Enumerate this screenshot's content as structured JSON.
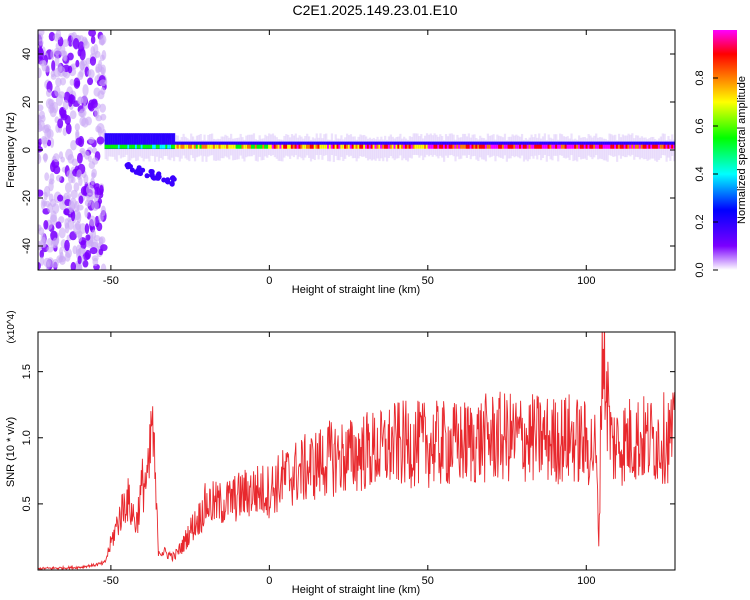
{
  "title": "C2E1.2025.149.23.01.E10",
  "chart_data": [
    {
      "type": "heatmap",
      "title": "C2E1.2025.149.23.01.E10",
      "xlabel": "Height of straight line (km)",
      "ylabel": "Frequency (Hz)",
      "xlim": [
        -73,
        128
      ],
      "ylim": [
        -50,
        50
      ],
      "xticks": [
        -50,
        0,
        50,
        100
      ],
      "yticks": [
        40,
        20,
        0,
        -20,
        -40
      ],
      "colorbar": {
        "label": "Normalized spectral amplitude",
        "range": [
          0,
          1
        ],
        "ticks": [
          "0.0",
          "0.2",
          "0.4",
          "0.6",
          "0.8"
        ],
        "colormap": [
          "#ffffff",
          "#7b00ff",
          "#0000ff",
          "#00ffff",
          "#00ff00",
          "#ffff00",
          "#ff8000",
          "#ff0000",
          "#ff00ff"
        ]
      },
      "features": [
        {
          "name": "broadband noise",
          "x_range": [
            -73,
            -52
          ],
          "freq_range": [
            -50,
            50
          ],
          "amplitude": 0.05
        },
        {
          "name": "spectral band",
          "x_range": [
            -52,
            128
          ],
          "center_freq": 1,
          "amplitude_peak": 0.95
        }
      ]
    },
    {
      "type": "line",
      "xlabel": "Height of straight line (km)",
      "ylabel": "SNR (10 * v/v)",
      "yscale_label": "(x10^4)",
      "xlim": [
        -73,
        128
      ],
      "ylim": [
        0,
        1.8
      ],
      "xticks": [
        -50,
        0,
        50,
        100
      ],
      "yticks": [
        0.5,
        1.0,
        1.5
      ],
      "series": [
        {
          "color": "#e8282d",
          "x": [
            -73,
            -60,
            -52,
            -48,
            -45,
            -42,
            -40,
            -38,
            -37,
            -35,
            -32,
            -30,
            -27,
            -25,
            -22,
            -20,
            -15,
            -10,
            -5,
            0,
            5,
            10,
            15,
            20,
            25,
            30,
            35,
            40,
            45,
            50,
            60,
            70,
            80,
            90,
            95,
            100,
            103,
            104,
            105,
            108,
            110,
            115,
            120,
            125,
            128
          ],
          "y": [
            0.01,
            0.02,
            0.05,
            0.35,
            0.55,
            0.35,
            0.65,
            0.7,
            1.15,
            0.15,
            0.12,
            0.1,
            0.2,
            0.3,
            0.4,
            0.5,
            0.5,
            0.55,
            0.6,
            0.6,
            0.7,
            0.75,
            0.8,
            0.85,
            0.85,
            0.9,
            0.9,
            0.95,
            0.95,
            0.95,
            0.95,
            1.0,
            1.0,
            0.98,
            1.0,
            0.95,
            0.9,
            0.2,
            1.75,
            0.95,
            0.95,
            1.0,
            0.98,
            1.0,
            1.0
          ]
        }
      ]
    }
  ]
}
